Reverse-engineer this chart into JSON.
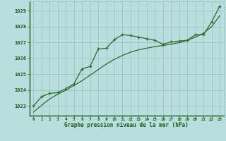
{
  "line_marker_x": [
    0,
    1,
    2,
    3,
    4,
    5,
    6,
    7,
    8,
    9,
    10,
    11,
    12,
    13,
    14,
    15,
    16,
    17,
    18,
    19,
    20,
    21,
    22,
    23
  ],
  "line_marker_y": [
    1023.0,
    1023.6,
    1023.8,
    1023.85,
    1024.1,
    1024.4,
    1025.35,
    1025.5,
    1026.6,
    1026.65,
    1027.2,
    1027.5,
    1027.45,
    1027.35,
    1027.25,
    1027.15,
    1026.9,
    1027.05,
    1027.1,
    1027.15,
    1027.5,
    1027.5,
    1028.3,
    1029.3
  ],
  "line_smooth_x": [
    0,
    1,
    2,
    3,
    4,
    5,
    6,
    7,
    8,
    9,
    10,
    11,
    12,
    13,
    14,
    15,
    16,
    17,
    18,
    19,
    20,
    21,
    22,
    23
  ],
  "line_smooth_y": [
    1022.62,
    1023.05,
    1023.45,
    1023.75,
    1024.0,
    1024.3,
    1024.6,
    1024.95,
    1025.3,
    1025.65,
    1025.95,
    1026.2,
    1026.4,
    1026.55,
    1026.65,
    1026.75,
    1026.82,
    1026.9,
    1027.0,
    1027.15,
    1027.35,
    1027.6,
    1028.0,
    1028.7
  ],
  "line_color": "#2d6a2d",
  "bg_color": "#b8dede",
  "grid_color": "#9cbfbf",
  "xlabel": "Graphe pression niveau de la mer (hPa)",
  "xlim": [
    -0.5,
    23.5
  ],
  "ylim": [
    1022.4,
    1029.6
  ],
  "yticks": [
    1023,
    1024,
    1025,
    1026,
    1027,
    1028,
    1029
  ],
  "xticks": [
    0,
    1,
    2,
    3,
    4,
    5,
    6,
    7,
    8,
    9,
    10,
    11,
    12,
    13,
    14,
    15,
    16,
    17,
    18,
    19,
    20,
    21,
    22,
    23
  ],
  "font_color": "#1a5c1a",
  "label_bg": "#1a5c1a"
}
